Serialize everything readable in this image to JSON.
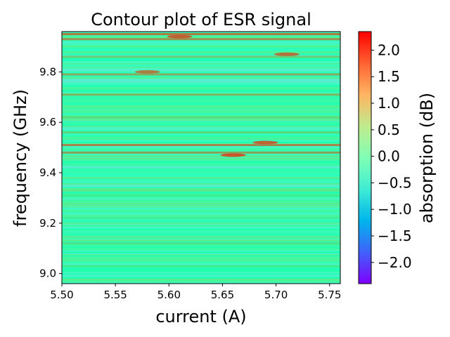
{
  "chart_data": {
    "type": "heatmap",
    "title": "Contour plot of ESR signal",
    "xlabel": "current (A)",
    "ylabel": "frequency (GHz)",
    "xlim": [
      5.5,
      5.76
    ],
    "ylim": [
      8.96,
      9.96
    ],
    "x_ticks": [
      5.5,
      5.55,
      5.6,
      5.65,
      5.7,
      5.75
    ],
    "x_tick_labels": [
      "5.50",
      "5.55",
      "5.60",
      "5.65",
      "5.70",
      "5.75"
    ],
    "y_ticks": [
      9.0,
      9.2,
      9.4,
      9.6,
      9.8
    ],
    "y_tick_labels": [
      "9.0",
      "9.2",
      "9.4",
      "9.6",
      "9.8"
    ],
    "colorbar": {
      "label": "absorption (dB)",
      "range": [
        -2.4,
        2.35
      ],
      "ticks": [
        -2.0,
        -1.5,
        -1.0,
        -0.5,
        0.0,
        0.5,
        1.0,
        1.5,
        2.0
      ],
      "tick_labels": [
        "−2.0",
        "−1.5",
        "−1.0",
        "−0.5",
        "0.0",
        "0.5",
        "1.0",
        "1.5",
        "2.0"
      ],
      "colormap": "rainbow"
    },
    "band_frequencies": [
      9.03,
      9.12,
      9.22,
      9.31,
      9.48,
      9.51,
      9.56,
      9.62,
      9.71,
      9.79,
      9.86,
      9.93,
      9.95
    ],
    "band_levels": [
      0.6,
      0.7,
      0.5,
      0.5,
      1.4,
      1.6,
      0.9,
      0.8,
      1.2,
      1.3,
      1.0,
      1.5,
      1.7
    ],
    "hot_spots": [
      {
        "x": 5.66,
        "y": 9.47,
        "value": 1.9
      },
      {
        "x": 5.69,
        "y": 9.52,
        "value": 1.8
      },
      {
        "x": 5.58,
        "y": 9.8,
        "value": 1.6
      },
      {
        "x": 5.71,
        "y": 9.87,
        "value": 1.7
      },
      {
        "x": 5.61,
        "y": 9.94,
        "value": 1.8
      }
    ],
    "grid": false,
    "legend": "none"
  }
}
